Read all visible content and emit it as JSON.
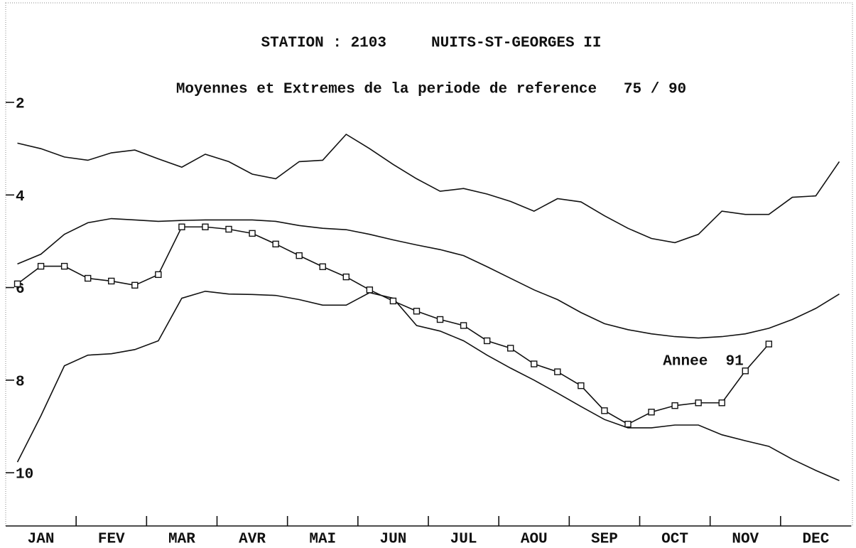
{
  "chart_data": {
    "type": "line",
    "title": "STATION : 2103     NUITS-ST-GEORGES II",
    "subtitle": "Moyennes et Extremes de la periode de reference   75 / 90",
    "annotation": "Annee  91",
    "categories": [
      "JAN",
      "FEV",
      "MAR",
      "AVR",
      "MAI",
      "JUN",
      "JUL",
      "AOU",
      "SEP",
      "OCT",
      "NOV",
      "DEC"
    ],
    "x": [
      1,
      2,
      3,
      4,
      5,
      6,
      7,
      8,
      9,
      10,
      11,
      12,
      13,
      14,
      15,
      16,
      17,
      18,
      19,
      20,
      21,
      22,
      23,
      24,
      25,
      26,
      27,
      28,
      29,
      30,
      31,
      32,
      33,
      34,
      35,
      36
    ],
    "xlim": [
      0.5,
      36.5
    ],
    "xticks": [
      3.5,
      6.5,
      9.5,
      12.5,
      15.5,
      18.5,
      21.5,
      24.5,
      27.5,
      30.5,
      33.5
    ],
    "ylim": [
      11.15,
      -0.15
    ],
    "yticks": [
      2,
      4,
      6,
      8,
      10
    ],
    "series": [
      {
        "color": "#111111",
        "markers": false,
        "values": [
          2.88,
          3.0,
          3.18,
          3.25,
          3.09,
          3.03,
          3.22,
          3.4,
          3.12,
          3.28,
          3.55,
          3.65,
          3.28,
          3.25,
          2.69,
          3.0,
          3.34,
          3.65,
          3.92,
          3.86,
          3.98,
          4.14,
          4.35,
          4.08,
          4.15,
          4.45,
          4.72,
          4.94,
          5.03,
          4.85,
          4.35,
          4.42,
          4.42,
          4.05,
          4.02,
          3.28
        ]
      },
      {
        "color": "#111111",
        "markers": false,
        "values": [
          5.49,
          5.28,
          4.85,
          4.6,
          4.51,
          4.54,
          4.57,
          4.55,
          4.54,
          4.54,
          4.54,
          4.57,
          4.66,
          4.72,
          4.75,
          4.85,
          4.97,
          5.08,
          5.18,
          5.31,
          5.55,
          5.8,
          6.05,
          6.26,
          6.54,
          6.78,
          6.91,
          7.0,
          7.06,
          7.09,
          7.06,
          7.0,
          6.88,
          6.69,
          6.45,
          6.14
        ]
      },
      {
        "color": "#111111",
        "markers": false,
        "values": [
          9.77,
          8.77,
          7.69,
          7.46,
          7.43,
          7.34,
          7.15,
          6.23,
          6.08,
          6.14,
          6.15,
          6.17,
          6.26,
          6.38,
          6.38,
          6.11,
          6.23,
          6.82,
          6.94,
          7.15,
          7.46,
          7.74,
          8.0,
          8.28,
          8.57,
          8.85,
          9.03,
          9.03,
          8.97,
          8.97,
          9.18,
          9.31,
          9.43,
          9.71,
          9.95,
          10.17
        ]
      },
      {
        "color": "#111111",
        "markers": true,
        "values": [
          5.92,
          5.54,
          5.54,
          5.8,
          5.86,
          5.95,
          5.72,
          4.69,
          4.69,
          4.74,
          4.83,
          5.06,
          5.31,
          5.55,
          5.77,
          6.05,
          6.29,
          6.51,
          6.69,
          6.82,
          7.15,
          7.31,
          7.65,
          7.82,
          8.12,
          8.66,
          8.95,
          8.69,
          8.55,
          8.49,
          8.49,
          7.8,
          7.22,
          null,
          null,
          null
        ]
      }
    ]
  }
}
